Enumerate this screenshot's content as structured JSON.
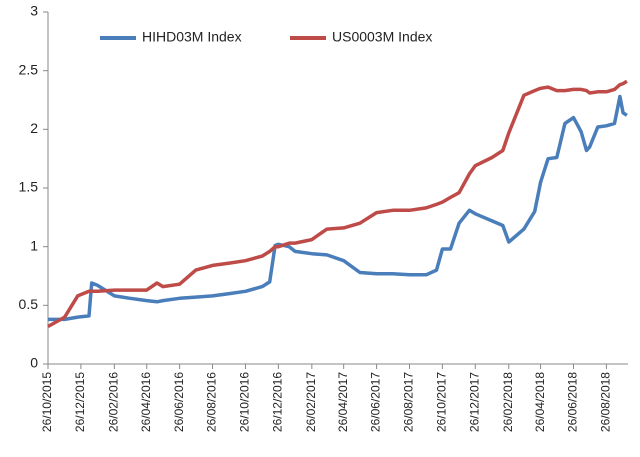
{
  "chart_data": {
    "type": "line",
    "x": [
      "26/10/2015",
      "26/11/2015",
      "20/12/2015",
      "10/01/2016",
      "15/01/2016",
      "26/01/2016",
      "26/02/2016",
      "26/03/2016",
      "26/04/2016",
      "15/05/2016",
      "26/05/2016",
      "26/06/2016",
      "26/07/2016",
      "26/08/2016",
      "26/09/2016",
      "26/10/2016",
      "26/11/2016",
      "10/12/2016",
      "20/12/2016",
      "26/12/2016",
      "15/01/2017",
      "26/01/2017",
      "26/02/2017",
      "26/03/2017",
      "26/04/2017",
      "26/05/2017",
      "26/06/2017",
      "26/07/2017",
      "26/08/2017",
      "26/09/2017",
      "15/10/2017",
      "26/10/2017",
      "10/11/2017",
      "26/11/2017",
      "15/12/2017",
      "26/12/2017",
      "26/01/2018",
      "15/02/2018",
      "26/02/2018",
      "26/03/2018",
      "15/04/2018",
      "26/04/2018",
      "10/05/2018",
      "26/05/2018",
      "10/06/2018",
      "26/06/2018",
      "10/07/2018",
      "20/07/2018",
      "26/07/2018",
      "10/08/2018",
      "26/08/2018",
      "10/09/2018",
      "20/09/2018",
      "26/09/2018",
      "03/10/2018"
    ],
    "series": [
      {
        "name": "HIHD03M Index",
        "color": "#4a7ebb",
        "values": [
          0.38,
          0.38,
          0.4,
          0.41,
          0.69,
          0.67,
          0.58,
          0.56,
          0.54,
          0.53,
          0.54,
          0.56,
          0.57,
          0.58,
          0.6,
          0.62,
          0.66,
          0.7,
          1.01,
          1.02,
          1.0,
          0.96,
          0.94,
          0.93,
          0.88,
          0.78,
          0.77,
          0.77,
          0.76,
          0.76,
          0.8,
          0.98,
          0.98,
          1.2,
          1.31,
          1.28,
          1.22,
          1.18,
          1.04,
          1.15,
          1.3,
          1.55,
          1.75,
          1.76,
          2.05,
          2.1,
          1.98,
          1.82,
          1.85,
          2.02,
          2.03,
          2.05,
          2.28,
          2.14,
          2.12
        ]
      },
      {
        "name": "US0003M Index",
        "color": "#be4b48",
        "values": [
          0.32,
          0.4,
          0.58,
          0.62,
          0.62,
          0.62,
          0.63,
          0.63,
          0.63,
          0.69,
          0.66,
          0.68,
          0.8,
          0.84,
          0.86,
          0.88,
          0.92,
          0.96,
          1.0,
          1.0,
          1.03,
          1.03,
          1.06,
          1.15,
          1.16,
          1.2,
          1.29,
          1.31,
          1.31,
          1.33,
          1.36,
          1.38,
          1.42,
          1.46,
          1.62,
          1.69,
          1.76,
          1.82,
          1.97,
          2.29,
          2.33,
          2.35,
          2.36,
          2.33,
          2.33,
          2.34,
          2.34,
          2.33,
          2.31,
          2.32,
          2.32,
          2.34,
          2.38,
          2.39,
          2.41
        ]
      }
    ],
    "xlim": [
      "26/10/2015",
      "05/10/2018"
    ],
    "xticks": [
      "26/10/2015",
      "26/12/2015",
      "26/02/2016",
      "26/04/2016",
      "26/06/2016",
      "26/08/2016",
      "26/10/2016",
      "26/12/2016",
      "26/02/2017",
      "26/04/2017",
      "26/06/2017",
      "26/08/2017",
      "26/10/2017",
      "26/12/2017",
      "26/02/2018",
      "26/04/2018",
      "26/06/2018",
      "26/08/2018"
    ],
    "ylim": [
      0,
      3
    ],
    "yticks": [
      0,
      0.5,
      1,
      1.5,
      2,
      2.5,
      3
    ],
    "grid": false,
    "legend": "top"
  }
}
